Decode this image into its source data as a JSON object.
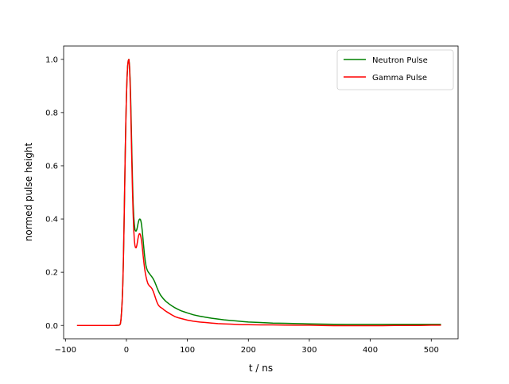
{
  "chart_data": {
    "type": "line",
    "xlabel": "t / ns",
    "ylabel": "normed pulse height",
    "xlim": [
      -103,
      544
    ],
    "ylim": [
      -0.05,
      1.05
    ],
    "x_ticks": [
      -100,
      0,
      100,
      200,
      300,
      400,
      500
    ],
    "y_ticks": [
      0.0,
      0.2,
      0.4,
      0.6,
      0.8,
      1.0
    ],
    "x_tick_labels": [
      "−100",
      "0",
      "100",
      "200",
      "300",
      "400",
      "500"
    ],
    "y_tick_labels": [
      "0.0",
      "0.2",
      "0.4",
      "0.6",
      "0.8",
      "1.0"
    ],
    "grid": false,
    "legend_position": "top-right",
    "series": [
      {
        "name": "Neutron Pulse",
        "color": "#008000",
        "x": [
          -80,
          -60,
          -40,
          -20,
          -12,
          -10,
          -9,
          -8,
          -7,
          -6,
          -5,
          -4,
          -3,
          -2,
          -1,
          0,
          1,
          2,
          3,
          4,
          5,
          6,
          7,
          8,
          9,
          10,
          11,
          12,
          13,
          14,
          15,
          16,
          17,
          18,
          19,
          20,
          21,
          22,
          23,
          24,
          25,
          26,
          27,
          28,
          29,
          30,
          31,
          32,
          33,
          34,
          35,
          36,
          37,
          38,
          39,
          40,
          42,
          44,
          46,
          48,
          50,
          52,
          54,
          56,
          58,
          60,
          62,
          65,
          70,
          75,
          80,
          85,
          90,
          95,
          100,
          110,
          120,
          130,
          140,
          150,
          160,
          170,
          180,
          190,
          200,
          220,
          240,
          260,
          280,
          300,
          320,
          340,
          360,
          380,
          400,
          420,
          440,
          460,
          480,
          500,
          515
        ],
        "values": [
          0.0,
          0.0,
          0.0,
          0.0,
          0.001,
          0.005,
          0.02,
          0.05,
          0.09,
          0.15,
          0.24,
          0.36,
          0.5,
          0.64,
          0.76,
          0.86,
          0.93,
          0.975,
          0.995,
          1.0,
          0.98,
          0.93,
          0.85,
          0.75,
          0.64,
          0.54,
          0.46,
          0.41,
          0.38,
          0.36,
          0.355,
          0.355,
          0.36,
          0.37,
          0.382,
          0.392,
          0.398,
          0.4,
          0.398,
          0.39,
          0.375,
          0.355,
          0.33,
          0.305,
          0.28,
          0.258,
          0.24,
          0.226,
          0.216,
          0.209,
          0.204,
          0.2,
          0.197,
          0.194,
          0.191,
          0.188,
          0.182,
          0.175,
          0.166,
          0.155,
          0.143,
          0.132,
          0.122,
          0.114,
          0.108,
          0.102,
          0.097,
          0.09,
          0.081,
          0.073,
          0.066,
          0.06,
          0.055,
          0.051,
          0.047,
          0.04,
          0.035,
          0.031,
          0.027,
          0.024,
          0.021,
          0.019,
          0.017,
          0.015,
          0.013,
          0.011,
          0.009,
          0.008,
          0.007,
          0.006,
          0.005,
          0.0045,
          0.004,
          0.004,
          0.004,
          0.004,
          0.004,
          0.004,
          0.004,
          0.004,
          0.004
        ]
      },
      {
        "name": "Gamma Pulse",
        "color": "#ff0000",
        "x": [
          -80,
          -60,
          -40,
          -20,
          -12,
          -10,
          -9,
          -8,
          -7,
          -6,
          -5,
          -4,
          -3,
          -2,
          -1,
          0,
          1,
          2,
          3,
          4,
          5,
          6,
          7,
          8,
          9,
          10,
          11,
          12,
          13,
          14,
          15,
          16,
          17,
          18,
          19,
          20,
          21,
          22,
          23,
          24,
          25,
          26,
          27,
          28,
          29,
          30,
          31,
          32,
          33,
          34,
          35,
          36,
          37,
          38,
          39,
          40,
          42,
          44,
          46,
          48,
          50,
          52,
          54,
          56,
          58,
          60,
          62,
          65,
          70,
          75,
          80,
          85,
          90,
          95,
          100,
          110,
          120,
          130,
          140,
          150,
          160,
          170,
          180,
          190,
          200,
          220,
          240,
          260,
          280,
          300,
          320,
          340,
          360,
          380,
          400,
          420,
          440,
          460,
          480,
          500,
          515
        ],
        "values": [
          0.0,
          0.0,
          0.0,
          0.0,
          0.001,
          0.005,
          0.02,
          0.05,
          0.09,
          0.15,
          0.24,
          0.36,
          0.5,
          0.64,
          0.76,
          0.86,
          0.93,
          0.975,
          0.995,
          1.0,
          0.975,
          0.91,
          0.82,
          0.71,
          0.6,
          0.5,
          0.42,
          0.36,
          0.32,
          0.3,
          0.292,
          0.292,
          0.3,
          0.313,
          0.327,
          0.338,
          0.344,
          0.345,
          0.34,
          0.33,
          0.315,
          0.295,
          0.272,
          0.25,
          0.23,
          0.212,
          0.197,
          0.185,
          0.175,
          0.166,
          0.159,
          0.154,
          0.151,
          0.148,
          0.146,
          0.144,
          0.138,
          0.128,
          0.115,
          0.101,
          0.088,
          0.078,
          0.072,
          0.068,
          0.065,
          0.062,
          0.058,
          0.053,
          0.046,
          0.039,
          0.033,
          0.029,
          0.026,
          0.023,
          0.02,
          0.016,
          0.013,
          0.011,
          0.009,
          0.007,
          0.006,
          0.005,
          0.004,
          0.003,
          0.003,
          0.002,
          0.002,
          0.0015,
          0.001,
          0.001,
          0.0,
          -0.001,
          -0.001,
          -0.001,
          -0.001,
          -0.001,
          0.0,
          0.0,
          0.0,
          0.001,
          0.001
        ]
      }
    ]
  }
}
